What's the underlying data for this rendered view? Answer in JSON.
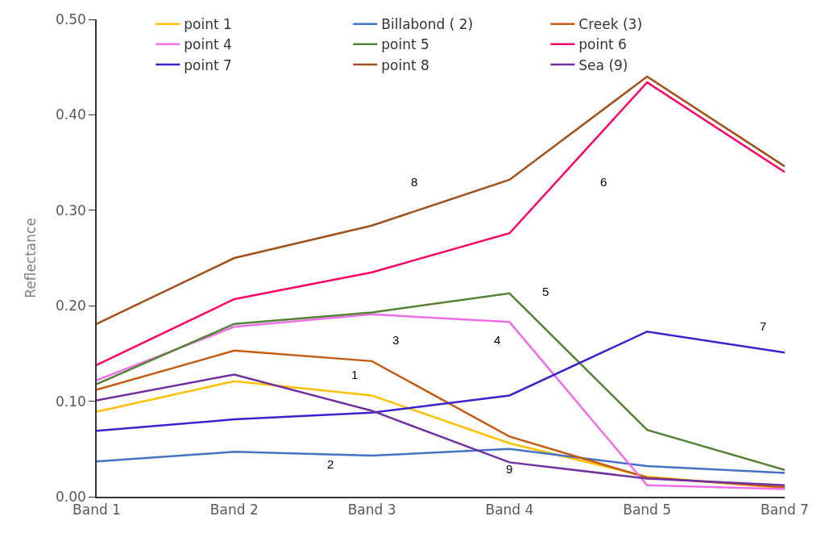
{
  "chart_data": {
    "type": "line",
    "ylabel": "Reflectance",
    "categories": [
      "Band 1",
      "Band 2",
      "Band 3",
      "Band 4",
      "Band 5",
      "Band 7"
    ],
    "series": [
      {
        "name": "point 1",
        "color": "#ffc000",
        "values": [
          0.089,
          0.121,
          0.106,
          0.056,
          0.021,
          0.009
        ]
      },
      {
        "name": "Billabond ( 2)",
        "color": "#4472c4",
        "values": [
          0.037,
          0.047,
          0.043,
          0.05,
          0.032,
          0.025
        ]
      },
      {
        "name": "Creek (3)",
        "color": "#c55a11",
        "values": [
          0.112,
          0.153,
          0.142,
          0.063,
          0.02,
          0.01
        ]
      },
      {
        "name": "point 4",
        "color": "#ee6ee8",
        "values": [
          0.122,
          0.178,
          0.191,
          0.183,
          0.012,
          0.008
        ]
      },
      {
        "name": "point 5",
        "color": "#548235",
        "values": [
          0.118,
          0.181,
          0.193,
          0.213,
          0.07,
          0.028
        ]
      },
      {
        "name": "point 6",
        "color": "#ff0066",
        "values": [
          0.138,
          0.207,
          0.235,
          0.276,
          0.434,
          0.34
        ]
      },
      {
        "name": "point 7",
        "color": "#3a22cc",
        "values": [
          0.069,
          0.081,
          0.088,
          0.106,
          0.173,
          0.151
        ]
      },
      {
        "name": "point 8",
        "color": "#a0501a",
        "values": [
          0.181,
          0.25,
          0.284,
          0.332,
          0.44,
          0.346
        ]
      },
      {
        "name": "Sea (9)",
        "color": "#7030a0",
        "values": [
          0.101,
          0.128,
          0.09,
          0.036,
          0.019,
          0.012
        ]
      }
    ],
    "ylim": [
      0,
      0.5
    ],
    "yticks": [
      {
        "value": 0,
        "label": "0.00"
      },
      {
        "value": 0.1,
        "label": "0.10"
      },
      {
        "value": 0.2,
        "label": "0.20"
      },
      {
        "value": 0.3,
        "label": "0.30"
      },
      {
        "value": 0.4,
        "label": "0.40"
      },
      {
        "value": 0.5,
        "label": "0.50"
      }
    ],
    "grid": false,
    "legend": "top",
    "marker": "none",
    "line_style": "solid",
    "annotations": [
      "1",
      "2",
      "3",
      "4",
      "5",
      "6",
      "7",
      "8",
      "9"
    ]
  }
}
